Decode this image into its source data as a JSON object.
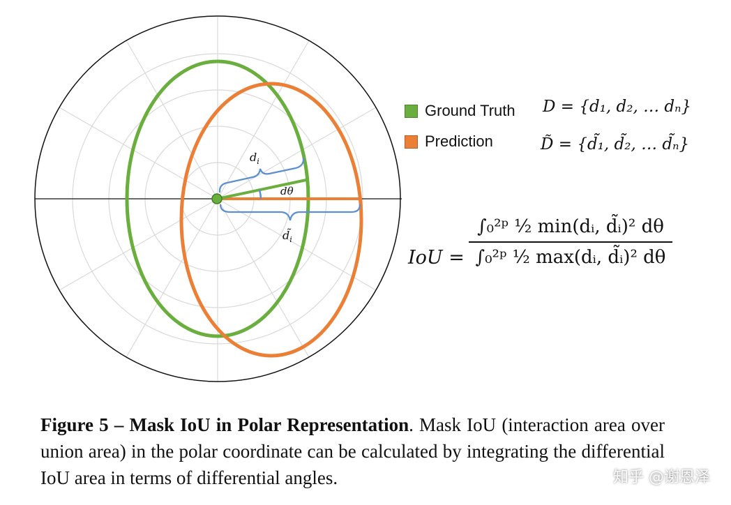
{
  "legend": {
    "ground_truth": {
      "label": "Ground Truth",
      "color": "#6aae3e"
    },
    "prediction": {
      "label": "Prediction",
      "color": "#ec7f36"
    }
  },
  "annotations": {
    "d_i": "d",
    "d_i_sub": "i",
    "d_theta": "dθ",
    "d_tilde_i": "d̃",
    "d_tilde_i_sub": "i"
  },
  "formulas": {
    "D_set": "D = {d₁, d₂, … dₙ}",
    "D_tilde_set": "D̃ = {d̃₁, d̃₂, … d̃ₙ}",
    "iou_lhs": "IoU =",
    "iou_numerator": "∫₀²ᵖ ½ min(dᵢ, d̃ᵢ)² dθ",
    "iou_denominator": "∫₀²ᵖ ½ max(dᵢ, d̃ᵢ)² dθ"
  },
  "caption": {
    "label": "Figure 5",
    "dash": " – ",
    "title": "Mask IoU in Polar Representation",
    "text": ". Mask IoU (interaction area over union area) in the polar coordinate can be calculated by integrating the differential IoU area in terms of differential angles."
  },
  "watermark": "知乎 @谢恩泽"
}
